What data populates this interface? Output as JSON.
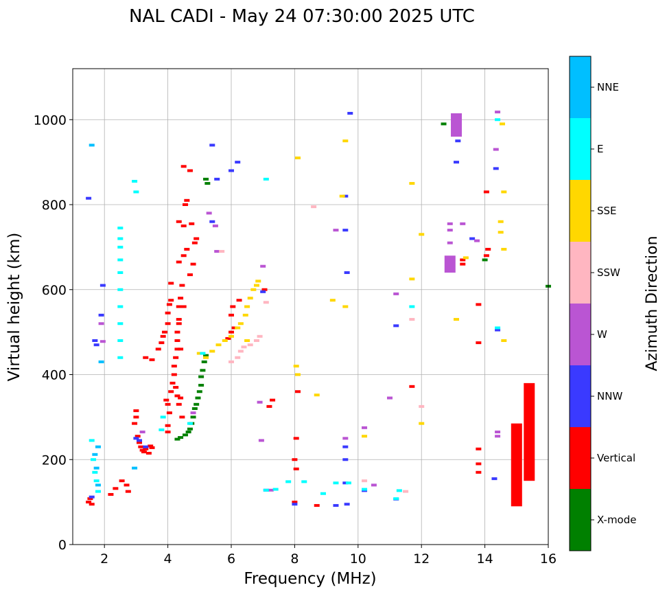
{
  "chart_data": {
    "type": "scatter",
    "title": "NAL CADI - May 24 07:30:00 2025 UTC",
    "xlabel": "Frequency (MHz)",
    "ylabel": "Virtual height (km)",
    "xlim": [
      1,
      16
    ],
    "ylim": [
      0,
      1120
    ],
    "xticks": [
      2,
      4,
      6,
      8,
      10,
      12,
      14,
      16
    ],
    "yticks": [
      0,
      200,
      400,
      600,
      800,
      1000
    ],
    "grid": true,
    "colorbar": {
      "label": "Azimuth Direction",
      "categories": [
        "X-mode",
        "Vertical",
        "NNW",
        "W",
        "SSW",
        "SSE",
        "E",
        "NNE"
      ],
      "colors": [
        "#008000",
        "#ff0000",
        "#3a3aff",
        "#ba55d3",
        "#ffb6c1",
        "#ffd700",
        "#00ffff",
        "#00bfff"
      ]
    },
    "series": [
      {
        "name": "Vertical",
        "points": [
          [
            1.5,
            100
          ],
          [
            1.55,
            108
          ],
          [
            1.6,
            95
          ],
          [
            2.2,
            118
          ],
          [
            2.35,
            132
          ],
          [
            2.55,
            150
          ],
          [
            2.7,
            140
          ],
          [
            2.75,
            125
          ],
          [
            2.95,
            285
          ],
          [
            3.0,
            300
          ],
          [
            3.0,
            315
          ],
          [
            3.05,
            255
          ],
          [
            3.1,
            240
          ],
          [
            3.15,
            230
          ],
          [
            3.2,
            222
          ],
          [
            3.25,
            218
          ],
          [
            3.3,
            225
          ],
          [
            3.4,
            215
          ],
          [
            3.45,
            232
          ],
          [
            3.5,
            228
          ],
          [
            3.3,
            440
          ],
          [
            3.5,
            435
          ],
          [
            3.7,
            460
          ],
          [
            3.8,
            475
          ],
          [
            3.85,
            490
          ],
          [
            3.9,
            500
          ],
          [
            4.0,
            520
          ],
          [
            4.0,
            545
          ],
          [
            4.05,
            565
          ],
          [
            4.1,
            575
          ],
          [
            4.1,
            615
          ],
          [
            3.95,
            340
          ],
          [
            4.0,
            330
          ],
          [
            4.05,
            310
          ],
          [
            4.0,
            280
          ],
          [
            4.0,
            265
          ],
          [
            4.1,
            360
          ],
          [
            4.15,
            380
          ],
          [
            4.2,
            400
          ],
          [
            4.2,
            420
          ],
          [
            4.25,
            440
          ],
          [
            4.3,
            460
          ],
          [
            4.3,
            480
          ],
          [
            4.3,
            500
          ],
          [
            4.35,
            520
          ],
          [
            4.35,
            530
          ],
          [
            4.4,
            460
          ],
          [
            4.25,
            370
          ],
          [
            4.3,
            350
          ],
          [
            4.35,
            330
          ],
          [
            4.4,
            345
          ],
          [
            4.45,
            300
          ],
          [
            4.35,
            560
          ],
          [
            4.4,
            580
          ],
          [
            4.5,
            560
          ],
          [
            4.45,
            610
          ],
          [
            4.35,
            665
          ],
          [
            4.5,
            680
          ],
          [
            4.6,
            695
          ],
          [
            4.7,
            635
          ],
          [
            4.8,
            660
          ],
          [
            4.55,
            800
          ],
          [
            4.6,
            810
          ],
          [
            4.35,
            760
          ],
          [
            4.5,
            750
          ],
          [
            4.75,
            755
          ],
          [
            4.85,
            710
          ],
          [
            4.9,
            720
          ],
          [
            4.5,
            890
          ],
          [
            4.7,
            880
          ],
          [
            5.9,
            485
          ],
          [
            6.0,
            500
          ],
          [
            6.1,
            510
          ],
          [
            6.0,
            540
          ],
          [
            6.05,
            560
          ],
          [
            6.25,
            575
          ],
          [
            7.05,
            600
          ],
          [
            7.2,
            325
          ],
          [
            7.3,
            340
          ],
          [
            8.0,
            100
          ],
          [
            8.0,
            200
          ],
          [
            8.05,
            178
          ],
          [
            8.1,
            360
          ],
          [
            8.05,
            250
          ],
          [
            8.7,
            92
          ],
          [
            11.7,
            372
          ],
          [
            13.3,
            670
          ],
          [
            13.3,
            660
          ],
          [
            13.8,
            225
          ],
          [
            13.8,
            190
          ],
          [
            13.8,
            170
          ],
          [
            13.8,
            565
          ],
          [
            13.8,
            475
          ],
          [
            14.05,
            680
          ],
          [
            14.05,
            830
          ],
          [
            14.1,
            695
          ]
        ]
      },
      {
        "name": "X-mode",
        "points": [
          [
            4.3,
            248
          ],
          [
            4.4,
            252
          ],
          [
            4.55,
            258
          ],
          [
            4.65,
            265
          ],
          [
            4.7,
            272
          ],
          [
            4.75,
            285
          ],
          [
            4.8,
            300
          ],
          [
            4.85,
            320
          ],
          [
            4.9,
            330
          ],
          [
            4.95,
            345
          ],
          [
            5.0,
            360
          ],
          [
            5.05,
            375
          ],
          [
            5.05,
            395
          ],
          [
            5.1,
            410
          ],
          [
            5.15,
            430
          ],
          [
            5.2,
            445
          ],
          [
            5.2,
            860
          ],
          [
            5.25,
            850
          ],
          [
            12.7,
            990
          ],
          [
            14.0,
            670
          ],
          [
            16.0,
            608
          ]
        ]
      },
      {
        "name": "NNW",
        "points": [
          [
            1.5,
            815
          ],
          [
            1.6,
            112
          ],
          [
            1.7,
            480
          ],
          [
            1.75,
            470
          ],
          [
            1.9,
            540
          ],
          [
            1.95,
            610
          ],
          [
            3.0,
            250
          ],
          [
            3.1,
            245
          ],
          [
            3.3,
            230
          ],
          [
            5.4,
            940
          ],
          [
            5.4,
            760
          ],
          [
            5.55,
            860
          ],
          [
            6.0,
            880
          ],
          [
            6.2,
            900
          ],
          [
            7.0,
            595
          ],
          [
            7.1,
            128
          ],
          [
            8.0,
            95
          ],
          [
            9.3,
            92
          ],
          [
            9.6,
            820
          ],
          [
            9.6,
            740
          ],
          [
            9.6,
            145
          ],
          [
            9.6,
            200
          ],
          [
            9.6,
            230
          ],
          [
            9.65,
            95
          ],
          [
            9.65,
            640
          ],
          [
            9.75,
            1015
          ],
          [
            10.2,
            127
          ],
          [
            11.2,
            107
          ],
          [
            11.2,
            515
          ],
          [
            13.1,
            900
          ],
          [
            13.15,
            950
          ],
          [
            13.6,
            720
          ],
          [
            14.3,
            155
          ],
          [
            14.35,
            885
          ],
          [
            14.4,
            505
          ]
        ]
      },
      {
        "name": "W",
        "points": [
          [
            1.9,
            520
          ],
          [
            1.95,
            478
          ],
          [
            3.2,
            265
          ],
          [
            4.8,
            310
          ],
          [
            5.3,
            780
          ],
          [
            5.5,
            750
          ],
          [
            5.55,
            690
          ],
          [
            6.9,
            335
          ],
          [
            6.95,
            245
          ],
          [
            7.0,
            655
          ],
          [
            7.25,
            128
          ],
          [
            9.3,
            740
          ],
          [
            9.6,
            250
          ],
          [
            10.2,
            275
          ],
          [
            10.5,
            140
          ],
          [
            11.0,
            345
          ],
          [
            11.2,
            590
          ],
          [
            12.9,
            710
          ],
          [
            12.9,
            740
          ],
          [
            12.9,
            755
          ],
          [
            13.3,
            755
          ],
          [
            13.75,
            715
          ],
          [
            14.35,
            930
          ],
          [
            14.4,
            265
          ],
          [
            14.4,
            255
          ],
          [
            14.4,
            1018
          ]
        ]
      },
      {
        "name": "SSW",
        "points": [
          [
            5.7,
            690
          ],
          [
            6.0,
            430
          ],
          [
            6.2,
            440
          ],
          [
            6.3,
            455
          ],
          [
            6.4,
            465
          ],
          [
            6.6,
            470
          ],
          [
            6.8,
            480
          ],
          [
            6.9,
            490
          ],
          [
            7.1,
            570
          ],
          [
            8.6,
            795
          ],
          [
            10.2,
            150
          ],
          [
            11.5,
            125
          ],
          [
            11.7,
            530
          ],
          [
            12.0,
            325
          ]
        ]
      },
      {
        "name": "SSE",
        "points": [
          [
            5.0,
            450
          ],
          [
            5.2,
            440
          ],
          [
            5.4,
            455
          ],
          [
            5.6,
            470
          ],
          [
            5.8,
            480
          ],
          [
            6.0,
            490
          ],
          [
            6.2,
            510
          ],
          [
            6.3,
            520
          ],
          [
            6.45,
            540
          ],
          [
            6.5,
            560
          ],
          [
            6.6,
            580
          ],
          [
            6.7,
            600
          ],
          [
            6.8,
            610
          ],
          [
            6.85,
            620
          ],
          [
            6.5,
            480
          ],
          [
            8.05,
            420
          ],
          [
            8.1,
            400
          ],
          [
            8.1,
            910
          ],
          [
            8.7,
            352
          ],
          [
            9.2,
            575
          ],
          [
            9.5,
            820
          ],
          [
            9.6,
            560
          ],
          [
            9.6,
            950
          ],
          [
            11.7,
            850
          ],
          [
            11.7,
            625
          ],
          [
            12.0,
            730
          ],
          [
            12.0,
            285
          ],
          [
            13.1,
            530
          ],
          [
            13.4,
            675
          ],
          [
            14.5,
            760
          ],
          [
            14.5,
            735
          ],
          [
            14.55,
            990
          ],
          [
            14.6,
            830
          ],
          [
            14.6,
            695
          ],
          [
            14.6,
            480
          ],
          [
            10.2,
            255
          ]
        ]
      },
      {
        "name": "E",
        "points": [
          [
            1.6,
            245
          ],
          [
            1.65,
            200
          ],
          [
            1.7,
            170
          ],
          [
            1.75,
            150
          ],
          [
            1.8,
            125
          ],
          [
            2.5,
            440
          ],
          [
            2.5,
            480
          ],
          [
            2.5,
            520
          ],
          [
            2.5,
            560
          ],
          [
            2.5,
            600
          ],
          [
            2.5,
            640
          ],
          [
            2.5,
            670
          ],
          [
            2.5,
            700
          ],
          [
            2.5,
            720
          ],
          [
            2.5,
            745
          ],
          [
            3.0,
            830
          ],
          [
            2.95,
            855
          ],
          [
            3.8,
            270
          ],
          [
            3.85,
            300
          ],
          [
            4.7,
            285
          ],
          [
            5.1,
            450
          ],
          [
            7.1,
            860
          ],
          [
            7.1,
            128
          ],
          [
            7.4,
            130
          ],
          [
            7.8,
            148
          ],
          [
            8.3,
            148
          ],
          [
            8.9,
            120
          ],
          [
            9.3,
            145
          ],
          [
            9.7,
            145
          ],
          [
            10.2,
            130
          ],
          [
            11.2,
            108
          ],
          [
            11.3,
            127
          ],
          [
            11.7,
            560
          ],
          [
            14.4,
            1000
          ],
          [
            14.4,
            510
          ]
        ]
      },
      {
        "name": "NNE",
        "points": [
          [
            1.6,
            940
          ],
          [
            1.7,
            212
          ],
          [
            1.75,
            180
          ],
          [
            1.8,
            230
          ],
          [
            1.8,
            140
          ],
          [
            1.9,
            430
          ],
          [
            2.95,
            180
          ]
        ]
      }
    ],
    "bars": [
      {
        "name": "Vertical",
        "x": 15.0,
        "y0": 90,
        "y1": 285
      },
      {
        "name": "Vertical",
        "x": 15.4,
        "y0": 150,
        "y1": 380
      },
      {
        "name": "W",
        "x": 13.1,
        "y0": 960,
        "y1": 1015
      },
      {
        "name": "W",
        "x": 12.9,
        "y0": 640,
        "y1": 680
      }
    ]
  }
}
